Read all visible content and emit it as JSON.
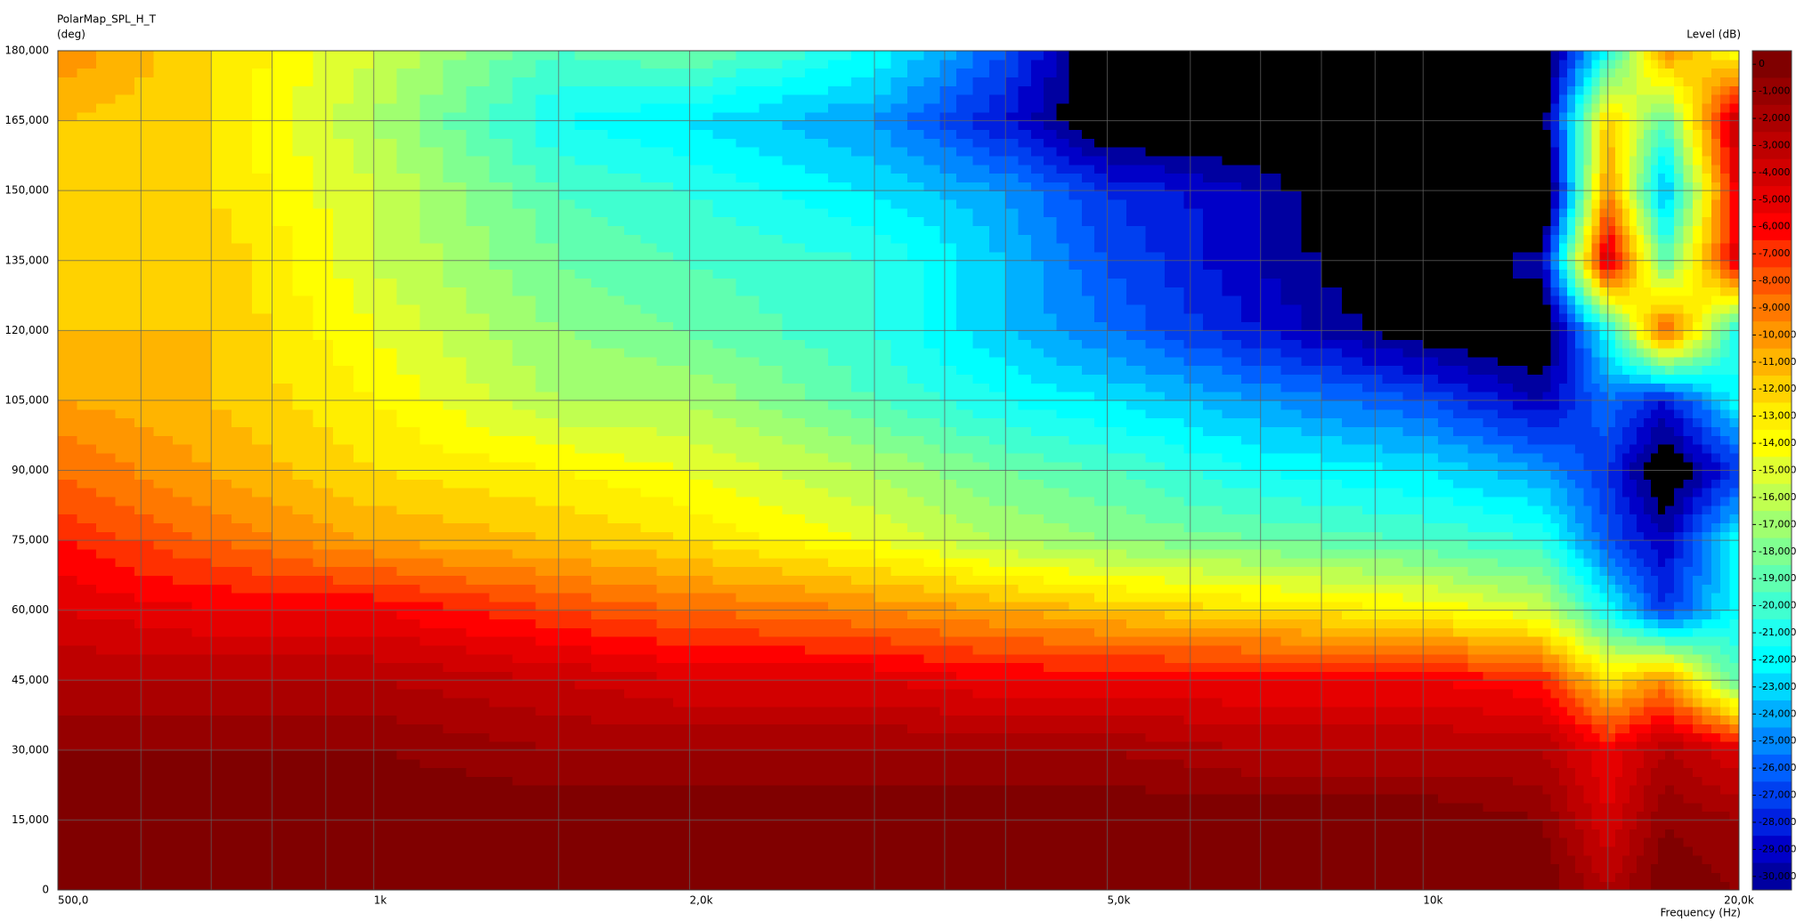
{
  "chart_data": {
    "type": "contour",
    "title": "PolarMap_SPL_H_T",
    "y_label": "(deg)",
    "x_label": "Frequency (Hz)",
    "colorbar_label": "Level (dB)",
    "xscale": "log",
    "grid": true,
    "x": [
      500,
      700,
      1000,
      1500,
      2000,
      3000,
      4000,
      5000,
      7000,
      10000,
      13000,
      15000,
      17000,
      20000
    ],
    "y": [
      0,
      15,
      30,
      45,
      60,
      75,
      90,
      105,
      120,
      135,
      150,
      165,
      180
    ],
    "z": [
      [
        0,
        0,
        0,
        0,
        0,
        0,
        0,
        0,
        0,
        0,
        0,
        -3,
        0,
        -1
      ],
      [
        0,
        0,
        0,
        0,
        0,
        0,
        0,
        0,
        0,
        0,
        -1,
        -5,
        -1,
        -2
      ],
      [
        -1,
        -1,
        -1,
        -2,
        -2,
        -2,
        -2,
        -2,
        -3,
        -3,
        -3,
        -6,
        -3,
        -5
      ],
      [
        -3,
        -3,
        -3,
        -4,
        -5,
        -5,
        -6,
        -6,
        -6,
        -6,
        -7,
        -13,
        -10,
        -20
      ],
      [
        -5,
        -6,
        -6,
        -8,
        -9,
        -10,
        -11,
        -12,
        -13,
        -14,
        -16,
        -22,
        -28,
        -22
      ],
      [
        -7,
        -9,
        -11,
        -12,
        -13,
        -15,
        -17,
        -18,
        -19,
        -20,
        -21,
        -27,
        -30,
        -22
      ],
      [
        -9,
        -11,
        -13,
        -14,
        -15,
        -17,
        -19,
        -20,
        -22,
        -23,
        -25,
        -28,
        -33,
        -28
      ],
      [
        -11,
        -12,
        -14,
        -17,
        -17,
        -20,
        -22,
        -23,
        -25,
        -27,
        -30,
        -26,
        -29,
        -22
      ],
      [
        -12,
        -12,
        -15,
        -18,
        -19,
        -21,
        -24,
        -26,
        -29,
        -32,
        -33,
        -22,
        -8,
        -22
      ],
      [
        -12,
        -12,
        -16,
        -19,
        -20,
        -21,
        -24,
        -27,
        -30,
        -33,
        -30,
        -4,
        -20,
        -5
      ],
      [
        -13,
        -13,
        -16,
        -20,
        -21,
        -23,
        -25,
        -28,
        -30,
        -35,
        -35,
        -10,
        -25,
        -5
      ],
      [
        -12,
        -13,
        -17,
        -22,
        -23,
        -25,
        -29,
        -33,
        -33,
        -35,
        -32,
        -12,
        -20,
        -3
      ],
      [
        -10,
        -13,
        -16,
        -20,
        -19,
        -22,
        -27,
        -33,
        -33,
        -33,
        -33,
        -22,
        -10,
        -15
      ]
    ],
    "xlim": [
      500,
      20000
    ],
    "ylim": [
      0,
      180
    ],
    "xticks": [
      {
        "value": 500,
        "label": "500,0"
      },
      {
        "value": 1000,
        "label": "1k"
      },
      {
        "value": 2000,
        "label": "2,0k"
      },
      {
        "value": 5000,
        "label": "5,0k"
      },
      {
        "value": 10000,
        "label": "10k"
      },
      {
        "value": 20000,
        "label": "20,0k"
      }
    ],
    "xminor": [
      600,
      700,
      800,
      900,
      1500,
      3000,
      3500,
      4000,
      6000,
      7000,
      8000,
      9000,
      15000
    ],
    "yticks": [
      0,
      {
        "value": 15,
        "label": "15,000"
      },
      {
        "value": 30,
        "label": "30,000"
      },
      {
        "value": 45,
        "label": "45,000"
      },
      {
        "value": 60,
        "label": "60,000"
      },
      {
        "value": 75,
        "label": "75,000"
      },
      {
        "value": 90,
        "label": "90,000"
      },
      {
        "value": 105,
        "label": "105,000"
      },
      {
        "value": 120,
        "label": "120,000"
      },
      {
        "value": 135,
        "label": "135,000"
      },
      {
        "value": 150,
        "label": "150,000"
      },
      {
        "value": 165,
        "label": "165,000"
      },
      {
        "value": 180,
        "label": "180,000"
      }
    ],
    "colorbar": {
      "levels": [
        0,
        {
          "value": -1,
          "label": "-1,000"
        },
        {
          "value": -2,
          "label": "-2,000"
        },
        {
          "value": -3,
          "label": "-3,000"
        },
        {
          "value": -4,
          "label": "-4,000"
        },
        {
          "value": -5,
          "label": "-5,000"
        },
        {
          "value": -6,
          "label": "-6,000"
        },
        {
          "value": -7,
          "label": "-7,000"
        },
        {
          "value": -8,
          "label": "-8,000"
        },
        {
          "value": -9,
          "label": "-9,000"
        },
        {
          "value": -10,
          "label": "-10,000"
        },
        {
          "value": -11,
          "label": "-11,000"
        },
        {
          "value": -12,
          "label": "-12,000"
        },
        {
          "value": -13,
          "label": "-13,000"
        },
        {
          "value": -14,
          "label": "-14,000"
        },
        {
          "value": -15,
          "label": "-15,000"
        },
        {
          "value": -16,
          "label": "-16,000"
        },
        {
          "value": -17,
          "label": "-17,000"
        },
        {
          "value": -18,
          "label": "-18,000"
        },
        {
          "value": -19,
          "label": "-19,000"
        },
        {
          "value": -20,
          "label": "-20,000"
        },
        {
          "value": -21,
          "label": "-21,000"
        },
        {
          "value": -22,
          "label": "-22,000"
        },
        {
          "value": -23,
          "label": "-23,000"
        },
        {
          "value": -24,
          "label": "-24,000"
        },
        {
          "value": -25,
          "label": "-25,000"
        },
        {
          "value": -26,
          "label": "-26,000"
        },
        {
          "value": -27,
          "label": "-27,000"
        },
        {
          "value": -28,
          "label": "-28,000"
        },
        {
          "value": -29,
          "label": "-29,000"
        },
        {
          "value": -30,
          "label": "-30,000"
        }
      ],
      "colors": [
        "#800000",
        "#960000",
        "#aa0000",
        "#be0000",
        "#d20000",
        "#e60000",
        "#ff0000",
        "#ff3000",
        "#ff5500",
        "#ff7800",
        "#ff9600",
        "#ffb400",
        "#ffd200",
        "#ffee00",
        "#ffff00",
        "#e0ff30",
        "#c0ff50",
        "#a0ff70",
        "#80ff90",
        "#60ffb0",
        "#40ffd0",
        "#20fff0",
        "#00ffff",
        "#00d8ff",
        "#00b0ff",
        "#0088ff",
        "#0060ff",
        "#0040f0",
        "#0020e0",
        "#0000c8",
        "#0000a0"
      ],
      "below_color": "#000000"
    }
  }
}
